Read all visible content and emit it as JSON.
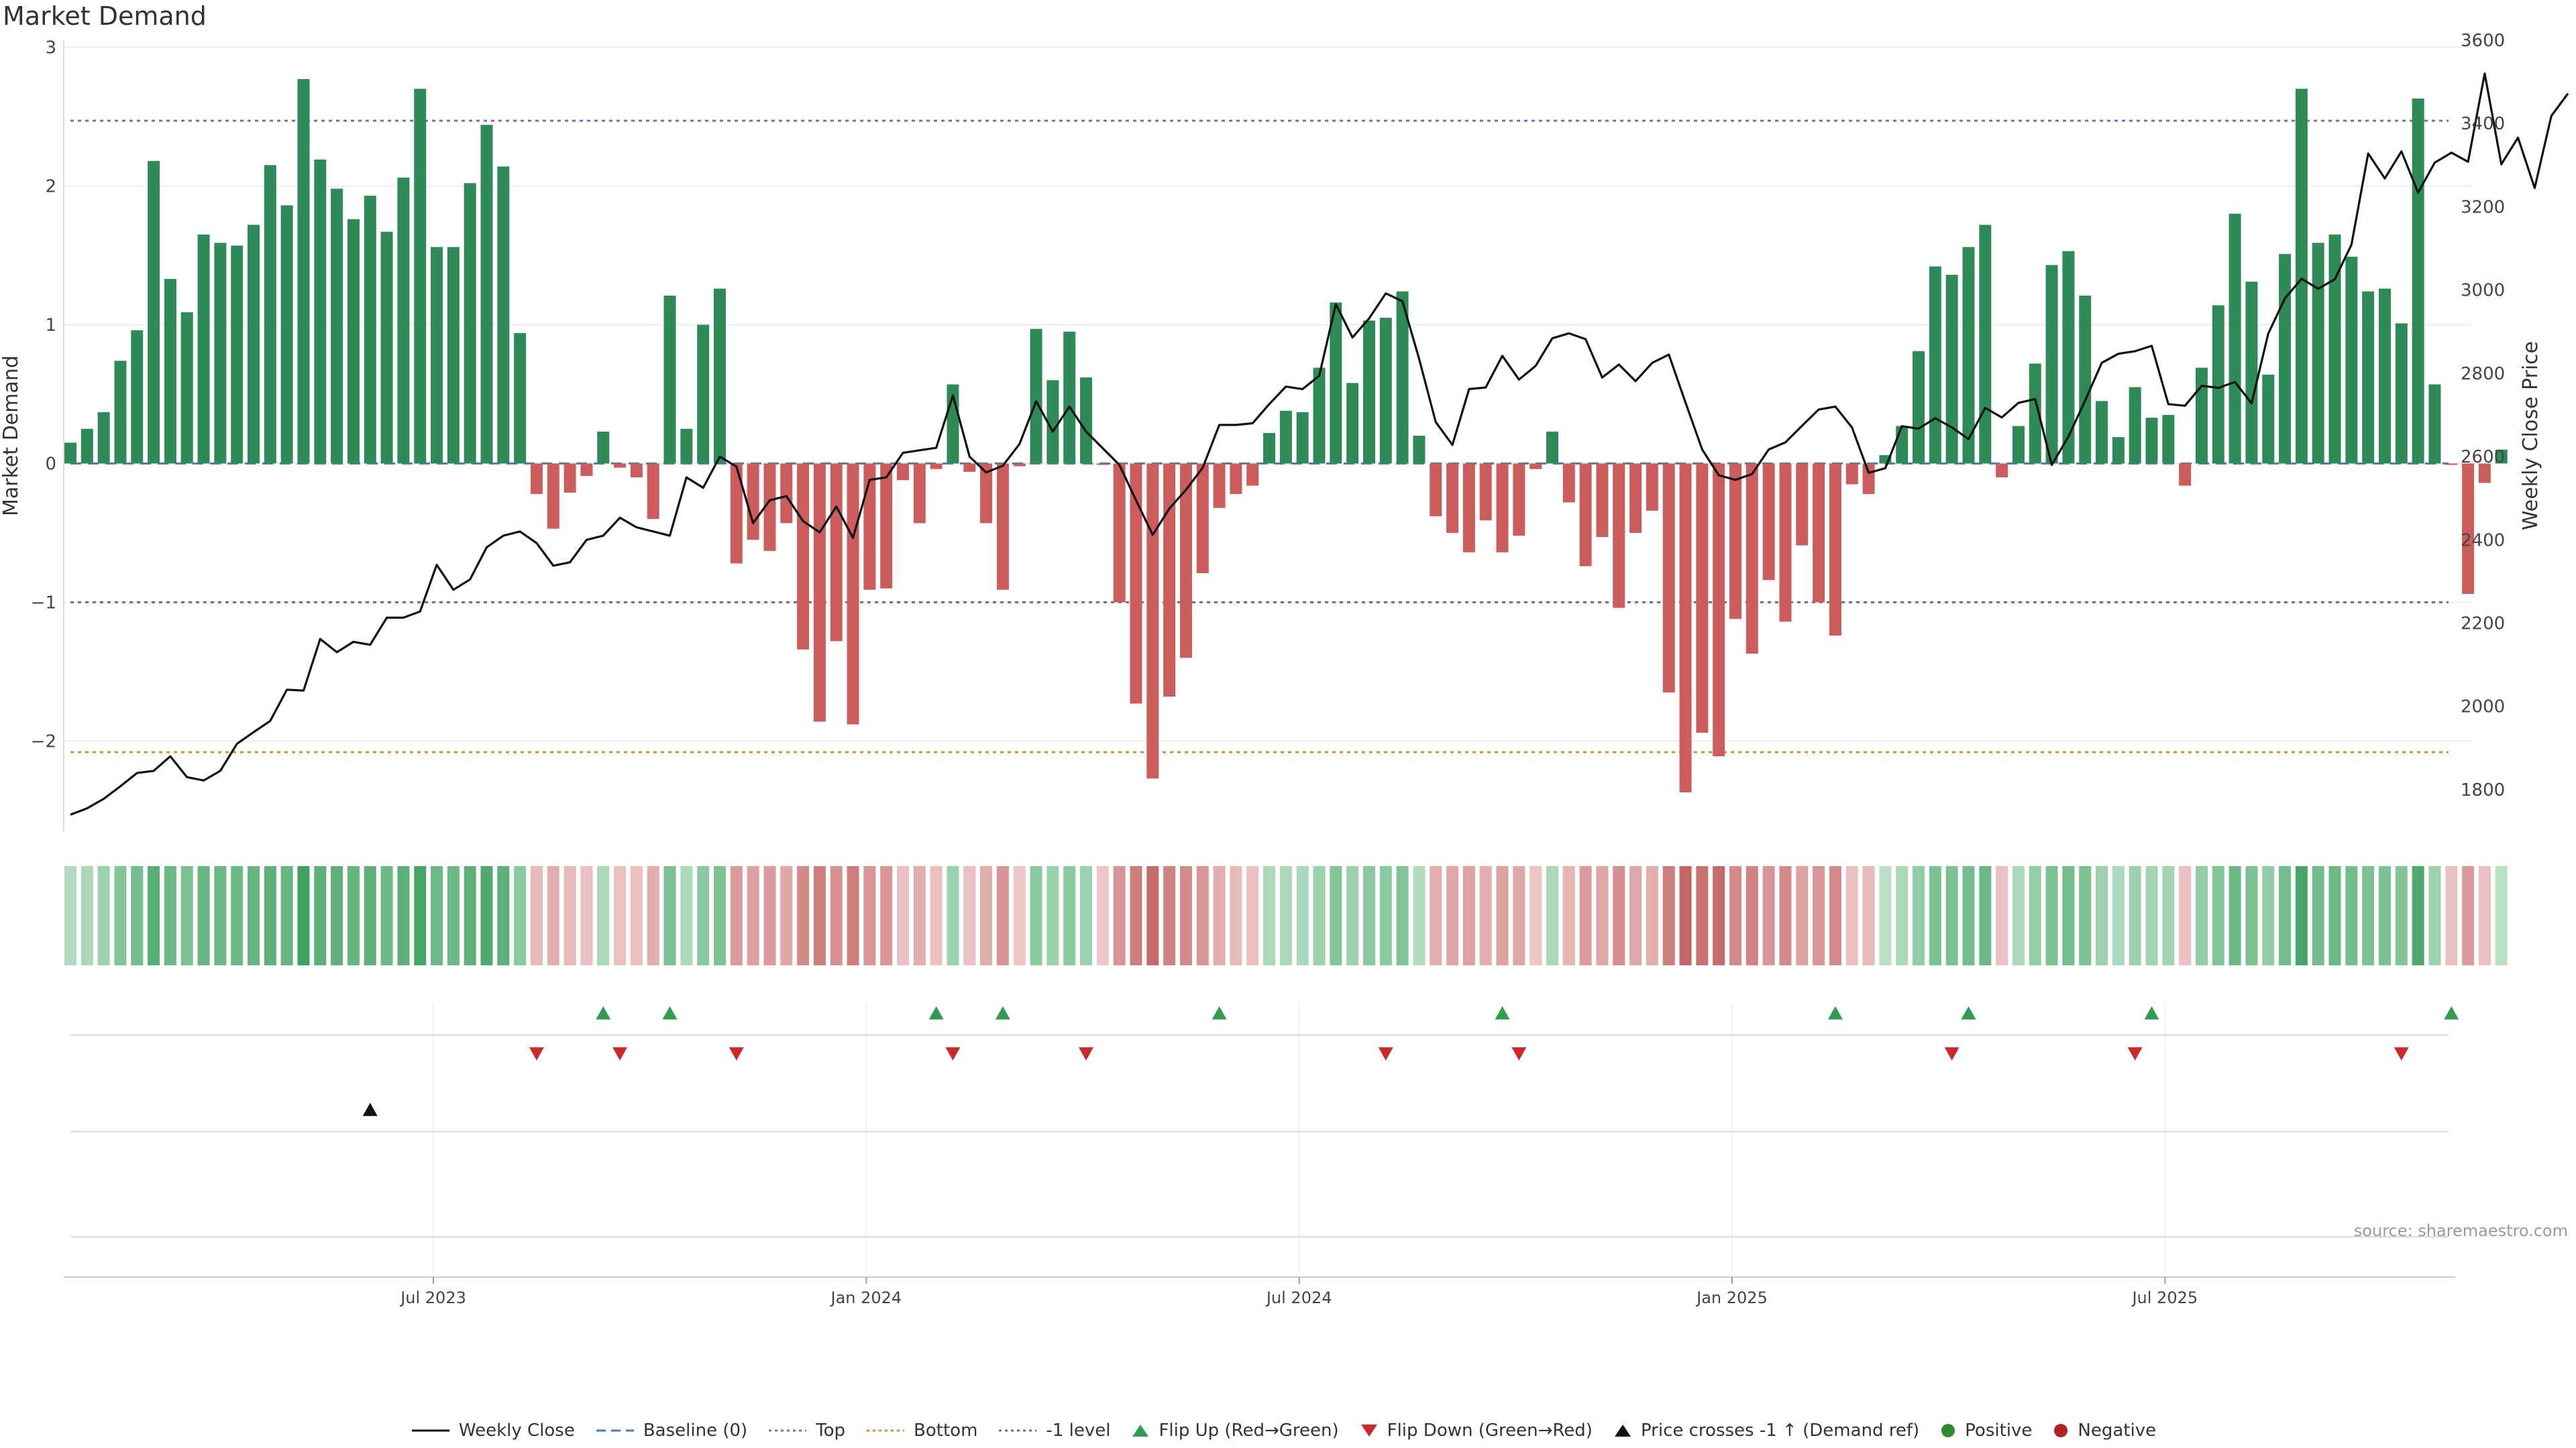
{
  "title": "Market Demand",
  "source": "source: sharemaestro.com",
  "colors": {
    "positive": "#2e8b57",
    "negative": "#cd5c5c",
    "line": "#111111",
    "top": "#7b6fb3",
    "bottom": "#e08a2c",
    "minus1": "#6b6b8e",
    "baseline": "#4a78c0",
    "flip_up": "#2e9e4e",
    "flip_down": "#cc2a2a",
    "cross": "#111111",
    "heat_pos_strong": "#2f9a52",
    "heat_pos_light": "#c9e8d2",
    "heat_neg_strong": "#c05858",
    "heat_neg_light": "#f1d2d2"
  },
  "chart_data": {
    "type": "bar",
    "title": "Market Demand",
    "xlabel": "",
    "ylabel": "Market Demand",
    "y2label": "Weekly Close Price",
    "ylim": [
      -2.65,
      3.05
    ],
    "y2lim": [
      1700,
      3600
    ],
    "y_ticks": [
      3,
      2,
      1,
      0,
      -1,
      -2
    ],
    "y_tick_labels": [
      "3",
      "2",
      "1",
      "0",
      "−1",
      "−2"
    ],
    "y2_ticks": [
      3600,
      3400,
      3200,
      3000,
      2800,
      2600,
      2400,
      2200,
      2000,
      1800
    ],
    "x_ticks": [
      22,
      48,
      74,
      100,
      126
    ],
    "x_tick_labels": [
      "Jul 2023",
      "Jan 2024",
      "Jul 2024",
      "Jan 2025",
      "Jul 2025"
    ],
    "reference_lines": {
      "top": 2.47,
      "bottom": -2.08,
      "minus1": -1.0,
      "baseline": 0
    },
    "demand": [
      0.15,
      0.25,
      0.37,
      0.74,
      0.96,
      2.18,
      1.33,
      1.09,
      1.65,
      1.59,
      1.57,
      1.72,
      2.15,
      1.86,
      2.77,
      2.19,
      1.98,
      1.76,
      1.93,
      1.67,
      2.06,
      2.7,
      1.56,
      1.56,
      2.02,
      2.44,
      2.14,
      0.94,
      -0.22,
      -0.47,
      -0.21,
      -0.09,
      0.23,
      -0.03,
      -0.1,
      -0.4,
      1.21,
      0.25,
      1.0,
      1.26,
      -0.72,
      -0.55,
      -0.63,
      -0.43,
      -1.34,
      -1.86,
      -1.28,
      -1.88,
      -0.91,
      -0.9,
      -0.12,
      -0.43,
      -0.04,
      0.57,
      -0.06,
      -0.43,
      -0.91,
      -0.02,
      0.97,
      0.6,
      0.95,
      0.62,
      -0.01,
      -1.0,
      -1.73,
      -2.27,
      -1.68,
      -1.4,
      -0.79,
      -0.32,
      -0.22,
      -0.16,
      0.22,
      0.38,
      0.37,
      0.69,
      1.16,
      0.58,
      1.03,
      1.05,
      1.24,
      0.2,
      -0.38,
      -0.5,
      -0.64,
      -0.41,
      -0.64,
      -0.52,
      -0.04,
      0.23,
      -0.28,
      -0.74,
      -0.53,
      -1.04,
      -0.5,
      -0.34,
      -1.65,
      -2.37,
      -1.94,
      -2.11,
      -1.12,
      -1.37,
      -0.84,
      -1.14,
      -0.59,
      -1.0,
      -1.24,
      -0.15,
      -0.22,
      0.06,
      0.27,
      0.81,
      1.42,
      1.36,
      1.56,
      1.72,
      -0.1,
      0.27,
      0.72,
      1.43,
      1.53,
      1.21,
      0.45,
      0.19,
      0.55,
      0.33,
      0.35,
      -0.16,
      0.69,
      1.14,
      1.8,
      1.31,
      0.64,
      1.51,
      2.7,
      1.59,
      1.65,
      1.49,
      1.24,
      1.26,
      1.01,
      2.63,
      0.57,
      -0.01,
      -0.94,
      -0.14,
      0.1
    ],
    "close": [
      1740,
      1755,
      1778,
      1808,
      1840,
      1845,
      1880,
      1830,
      1822,
      1845,
      1910,
      1938,
      1965,
      2040,
      2038,
      2162,
      2130,
      2155,
      2148,
      2213,
      2213,
      2228,
      2340,
      2280,
      2305,
      2382,
      2410,
      2420,
      2392,
      2338,
      2346,
      2400,
      2410,
      2453,
      2430,
      2420,
      2410,
      2550,
      2525,
      2600,
      2576,
      2440,
      2495,
      2505,
      2445,
      2418,
      2480,
      2405,
      2544,
      2550,
      2609,
      2615,
      2621,
      2747,
      2600,
      2562,
      2578,
      2630,
      2733,
      2660,
      2720,
      2660,
      2620,
      2580,
      2495,
      2412,
      2475,
      2520,
      2573,
      2676,
      2676,
      2680,
      2726,
      2768,
      2762,
      2794,
      2966,
      2886,
      2932,
      2992,
      2973,
      2835,
      2683,
      2628,
      2762,
      2766,
      2842,
      2785,
      2818,
      2884,
      2896,
      2882,
      2790,
      2821,
      2781,
      2825,
      2845,
      2730,
      2617,
      2555,
      2544,
      2558,
      2617,
      2634,
      2674,
      2713,
      2720,
      2670,
      2561,
      2572,
      2673,
      2667,
      2692,
      2670,
      2642,
      2717,
      2694,
      2729,
      2738,
      2580,
      2648,
      2734,
      2825,
      2847,
      2853,
      2866,
      2726,
      2722,
      2770,
      2765,
      2779,
      2728,
      2895,
      2980,
      3027,
      3003,
      3026,
      3109,
      3328,
      3268,
      3333,
      3234,
      3306,
      3330,
      3308,
      3520,
      3302,
      3366,
      3245,
      3418,
      3472
    ],
    "heat_intensity": [
      0.15,
      0.2,
      0.3,
      0.45,
      0.55,
      0.75,
      0.6,
      0.5,
      0.65,
      0.6,
      0.6,
      0.65,
      0.7,
      0.65,
      0.9,
      0.7,
      0.7,
      0.65,
      0.7,
      0.6,
      0.7,
      0.85,
      0.6,
      0.6,
      0.7,
      0.8,
      0.7,
      0.4,
      0.2,
      0.3,
      0.2,
      0.15,
      0.2,
      0.15,
      0.15,
      0.3,
      0.5,
      0.2,
      0.4,
      0.5,
      0.45,
      0.4,
      0.45,
      0.35,
      0.6,
      0.7,
      0.55,
      0.7,
      0.5,
      0.5,
      0.15,
      0.3,
      0.15,
      0.3,
      0.15,
      0.3,
      0.5,
      0.1,
      0.4,
      0.3,
      0.4,
      0.3,
      0.1,
      0.5,
      0.7,
      0.85,
      0.65,
      0.6,
      0.5,
      0.3,
      0.2,
      0.15,
      0.2,
      0.2,
      0.2,
      0.3,
      0.45,
      0.3,
      0.4,
      0.4,
      0.45,
      0.15,
      0.3,
      0.35,
      0.4,
      0.3,
      0.4,
      0.35,
      0.1,
      0.2,
      0.25,
      0.45,
      0.35,
      0.55,
      0.35,
      0.3,
      0.7,
      0.9,
      0.8,
      0.85,
      0.6,
      0.65,
      0.5,
      0.6,
      0.4,
      0.5,
      0.6,
      0.15,
      0.2,
      0.1,
      0.2,
      0.35,
      0.5,
      0.5,
      0.55,
      0.6,
      0.15,
      0.2,
      0.35,
      0.5,
      0.55,
      0.5,
      0.3,
      0.2,
      0.3,
      0.25,
      0.25,
      0.15,
      0.35,
      0.45,
      0.6,
      0.5,
      0.35,
      0.55,
      0.85,
      0.55,
      0.6,
      0.55,
      0.5,
      0.5,
      0.45,
      0.8,
      0.3,
      0.15,
      0.45,
      0.15,
      0.1
    ],
    "flip_up_idx": [
      32,
      36,
      52,
      56,
      69,
      86,
      106,
      114,
      125,
      143
    ],
    "flip_down_idx": [
      28,
      33,
      40,
      53,
      61,
      79,
      87,
      113,
      124,
      140
    ],
    "cross_idx": [
      18
    ],
    "legend": [
      "Weekly Close",
      "Baseline (0)",
      "Top",
      "Bottom",
      "-1 level",
      "Flip Up (Red→Green)",
      "Flip Down (Green→Red)",
      "Price crosses -1 ↑ (Demand ref)",
      "Positive",
      "Negative"
    ]
  }
}
